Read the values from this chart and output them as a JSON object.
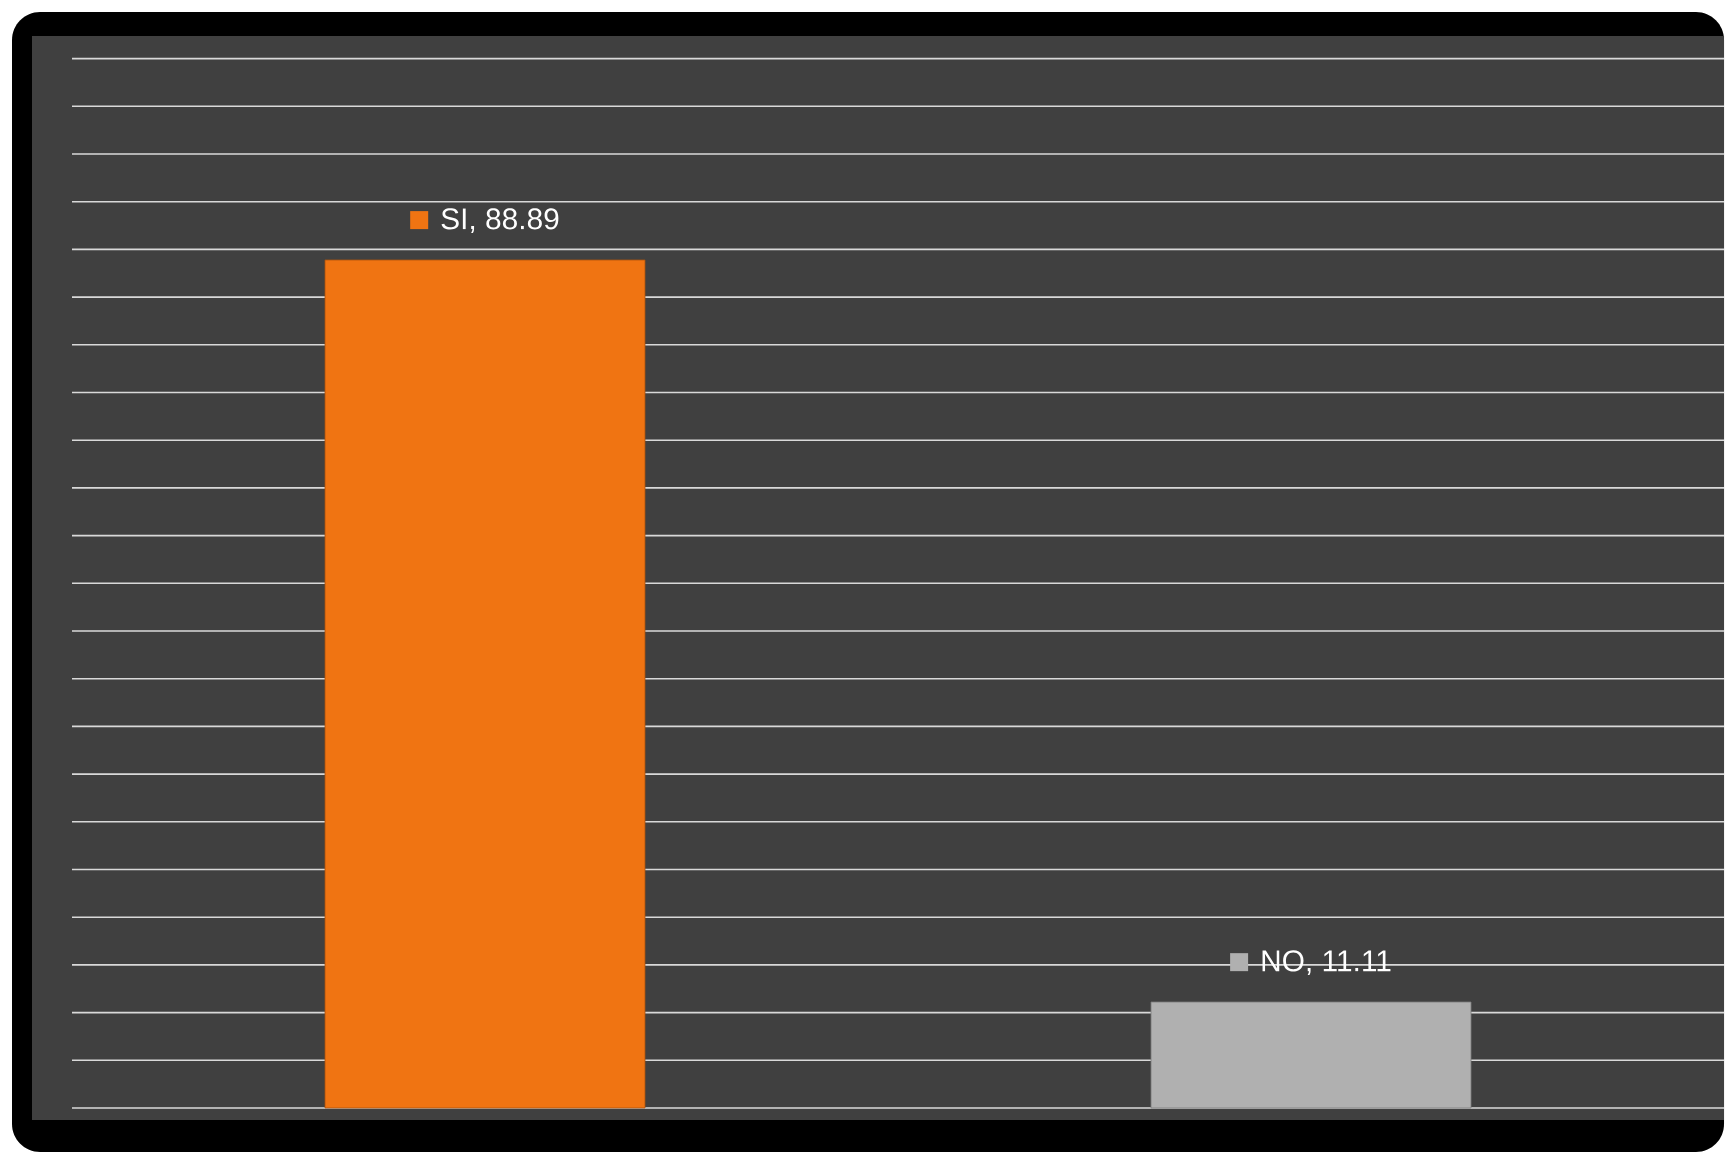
{
  "chart_data": {
    "type": "bar",
    "categories": [
      null,
      null
    ],
    "values": [
      88.89,
      11.11
    ],
    "colors": [
      "#f07412",
      "#b0b0b0"
    ],
    "value_labels": [
      "SI, 88.89",
      "NO, 11.11"
    ],
    "tick_labels": false,
    "grid": "y"
  }
}
